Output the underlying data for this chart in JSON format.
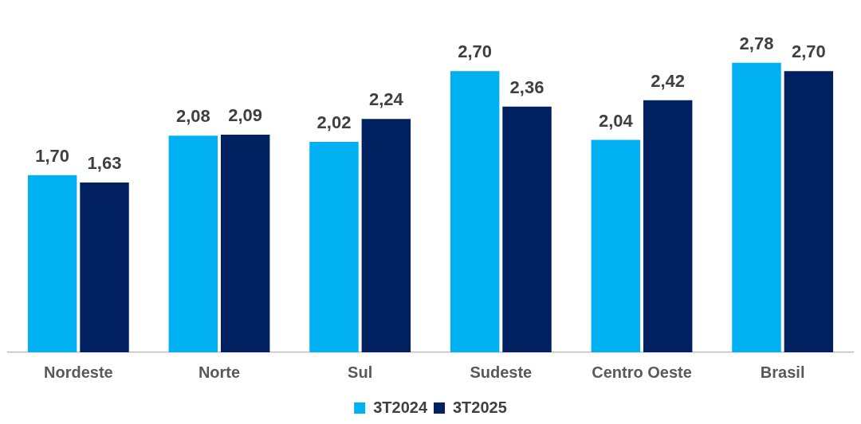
{
  "chart_data": {
    "type": "bar",
    "categories": [
      "Nordeste",
      "Norte",
      "Sul",
      "Sudeste",
      "Centro Oeste",
      "Brasil"
    ],
    "series": [
      {
        "name": "3T2024",
        "color": "#00b0f0",
        "values": [
          1.7,
          2.08,
          2.02,
          2.7,
          2.04,
          2.78
        ],
        "value_labels": [
          "1,70",
          "2,08",
          "2,02",
          "2,70",
          "2,04",
          "2,78"
        ]
      },
      {
        "name": "3T2025",
        "color": "#002060",
        "values": [
          1.63,
          2.09,
          2.24,
          2.36,
          2.42,
          2.7
        ],
        "value_labels": [
          "1,63",
          "2,09",
          "2,24",
          "2,36",
          "2,42",
          "2,70"
        ]
      }
    ],
    "legend": "bottom"
  }
}
